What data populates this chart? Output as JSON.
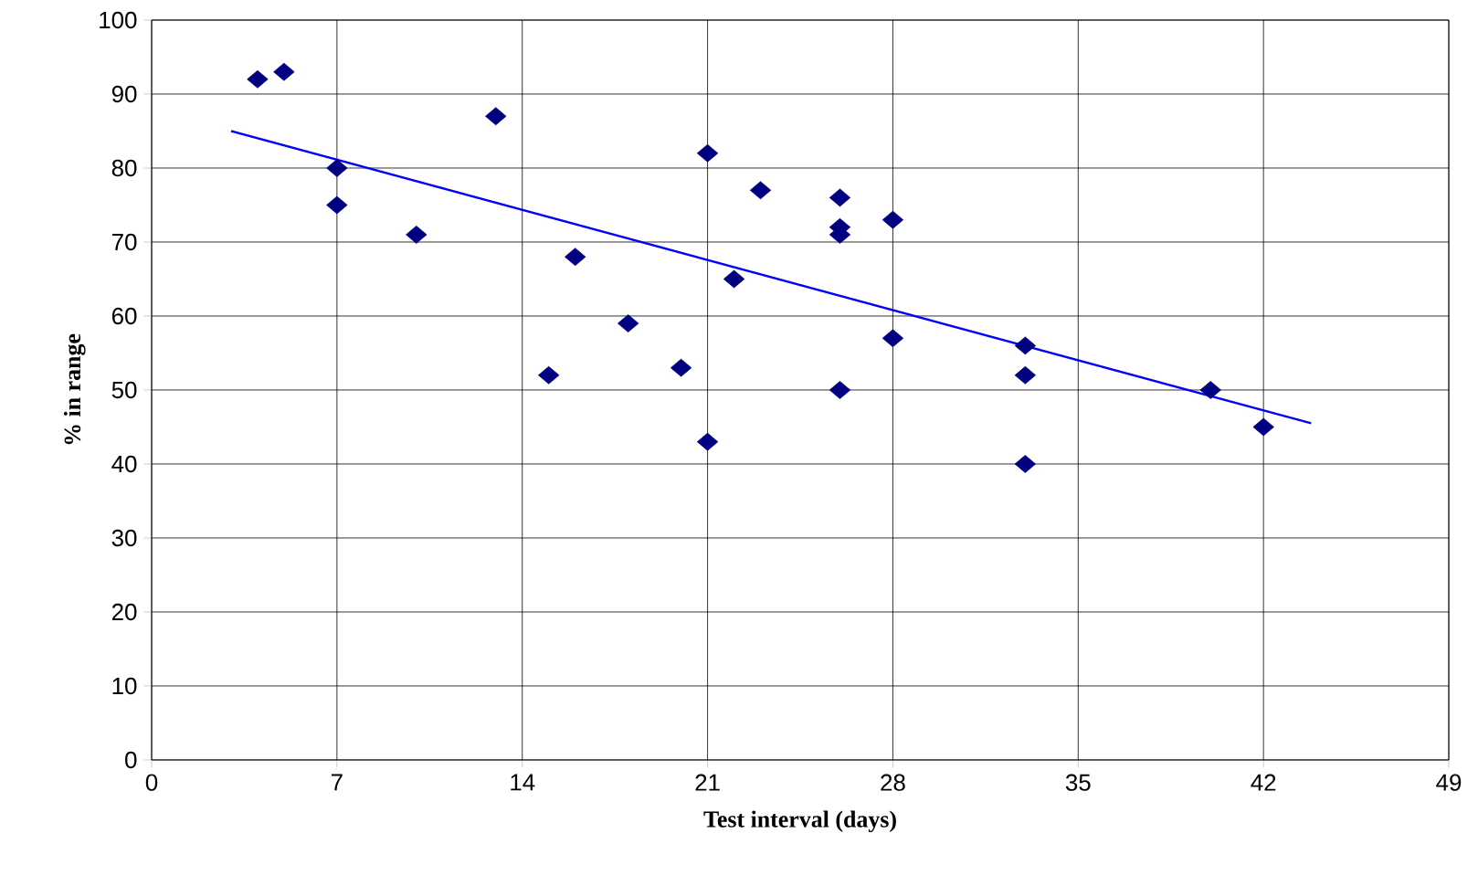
{
  "chart_data": {
    "type": "scatter",
    "xlabel": "Test interval (days)",
    "ylabel": "% in range",
    "xlim": [
      0,
      49
    ],
    "ylim": [
      0,
      100
    ],
    "xticks": [
      0,
      7,
      14,
      21,
      28,
      35,
      42,
      49
    ],
    "yticks": [
      0,
      10,
      20,
      30,
      40,
      50,
      60,
      70,
      80,
      90,
      100
    ],
    "grid": true,
    "series": [
      {
        "color": "#000080",
        "marker": "diamond",
        "x": [
          4,
          5,
          7,
          7,
          10,
          13,
          15,
          16,
          18,
          20,
          21,
          21,
          22,
          23,
          26,
          26,
          26,
          26,
          28,
          28,
          33,
          33,
          33,
          40,
          42
        ],
        "values": [
          92,
          93,
          80,
          75,
          71,
          87,
          52,
          68,
          59,
          53,
          82,
          43,
          65,
          77,
          76,
          72,
          71,
          50,
          73,
          57,
          56,
          52,
          40,
          50,
          45
        ]
      },
      {
        "type": "line",
        "color": "#0000ff",
        "marker": "none",
        "x": [
          3,
          43.8
        ],
        "values": [
          85,
          45.5
        ]
      }
    ]
  }
}
